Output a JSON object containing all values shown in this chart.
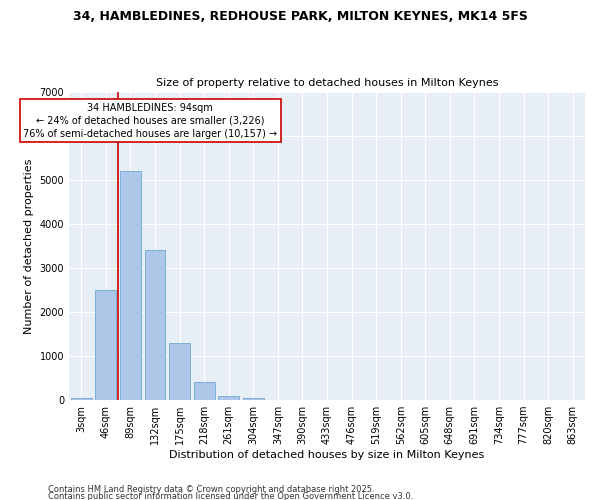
{
  "title1": "34, HAMBLEDINES, REDHOUSE PARK, MILTON KEYNES, MK14 5FS",
  "title2": "Size of property relative to detached houses in Milton Keynes",
  "xlabel": "Distribution of detached houses by size in Milton Keynes",
  "ylabel": "Number of detached properties",
  "bar_color": "#aec6e8",
  "bar_edge_color": "#5a9fd4",
  "categories": [
    "3sqm",
    "46sqm",
    "89sqm",
    "132sqm",
    "175sqm",
    "218sqm",
    "261sqm",
    "304sqm",
    "347sqm",
    "390sqm",
    "433sqm",
    "476sqm",
    "519sqm",
    "562sqm",
    "605sqm",
    "648sqm",
    "691sqm",
    "734sqm",
    "777sqm",
    "820sqm",
    "863sqm"
  ],
  "values": [
    50,
    2500,
    5200,
    3400,
    1300,
    400,
    100,
    50,
    0,
    0,
    0,
    0,
    0,
    0,
    0,
    0,
    0,
    0,
    0,
    0,
    0
  ],
  "ylim": [
    0,
    7000
  ],
  "yticks": [
    0,
    1000,
    2000,
    3000,
    4000,
    5000,
    6000,
    7000
  ],
  "vline_x_index": 2,
  "annotation_text": "34 HAMBLEDINES: 94sqm\n← 24% of detached houses are smaller (3,226)\n76% of semi-detached houses are larger (10,157) →",
  "annotation_box_facecolor": "#ffffff",
  "annotation_box_edgecolor": "#cc0000",
  "bg_color": "#e8eef6",
  "vline_color": "#cc0000",
  "footer1": "Contains HM Land Registry data © Crown copyright and database right 2025.",
  "footer2": "Contains public sector information licensed under the Open Government Licence v3.0.",
  "title1_fontsize": 9,
  "title2_fontsize": 8,
  "xlabel_fontsize": 8,
  "ylabel_fontsize": 8,
  "tick_fontsize": 7,
  "footer_fontsize": 6
}
